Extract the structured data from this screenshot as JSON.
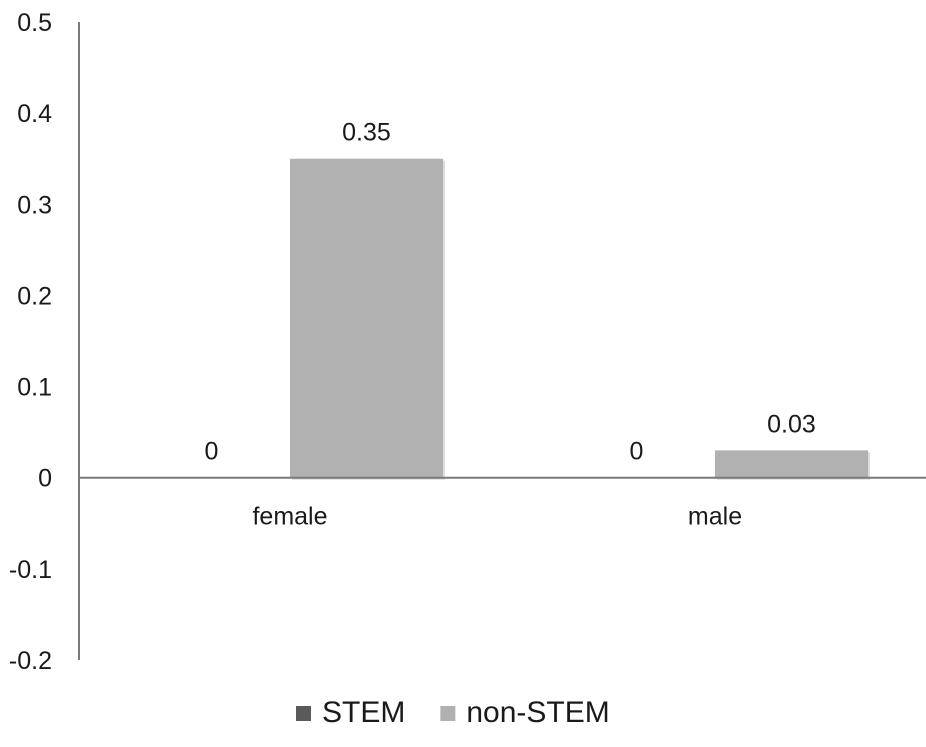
{
  "chart_data": {
    "type": "bar",
    "categories": [
      "female",
      "male"
    ],
    "series": [
      {
        "name": "STEM",
        "values": [
          0,
          0
        ],
        "color": "#5a5a5a"
      },
      {
        "name": "non-STEM",
        "values": [
          0.35,
          0.03
        ],
        "color": "#b1b1b1"
      }
    ],
    "data_labels": [
      [
        "0",
        "0"
      ],
      [
        "0.35",
        "0.03"
      ]
    ],
    "yticks": [
      "0.5",
      "0.4",
      "0.3",
      "0.2",
      "0.1",
      "0",
      "-0.1",
      "-0.2"
    ],
    "ytick_values": [
      0.5,
      0.4,
      0.3,
      0.2,
      0.1,
      0,
      -0.1,
      -0.2
    ],
    "ylim": [
      -0.2,
      0.5
    ],
    "title": "",
    "xlabel": "",
    "ylabel": "",
    "grid": false,
    "legend_position": "bottom"
  }
}
